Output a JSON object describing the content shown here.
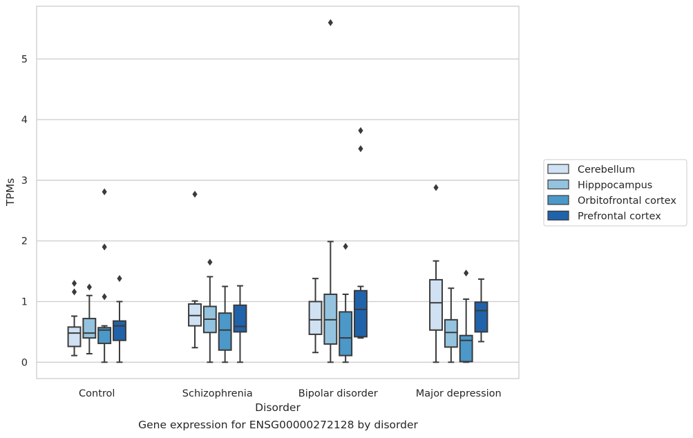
{
  "caption": "Gene expression for ENSG00000272128 by disorder",
  "chart_data": {
    "type": "box",
    "title": "",
    "xlabel": "Disorder",
    "ylabel": "TPMs",
    "ylim": [
      -0.27,
      5.87
    ],
    "yticks": [
      0,
      1,
      2,
      3,
      4,
      5
    ],
    "grid": "horizontal",
    "legend_position": "outside-right",
    "categories": [
      "Control",
      "Schizophrenia",
      "Bipolar disorder",
      "Major depression"
    ],
    "series": [
      {
        "name": "Cerebellum",
        "color": "#cfe1f2",
        "boxes": [
          {
            "whislo": 0.11,
            "q1": 0.26,
            "med": 0.48,
            "q3": 0.58,
            "whishi": 0.76,
            "fliers": [
              1.16,
              1.3
            ]
          },
          {
            "whislo": 0.24,
            "q1": 0.6,
            "med": 0.77,
            "q3": 0.96,
            "whishi": 1.01,
            "fliers": [
              2.77
            ]
          },
          {
            "whislo": 0.16,
            "q1": 0.46,
            "med": 0.7,
            "q3": 1.0,
            "whishi": 1.38,
            "fliers": []
          },
          {
            "whislo": 0.0,
            "q1": 0.53,
            "med": 0.98,
            "q3": 1.36,
            "whishi": 1.67,
            "fliers": [
              2.88
            ]
          }
        ]
      },
      {
        "name": "Hipppocampus",
        "color": "#93c3df",
        "boxes": [
          {
            "whislo": 0.14,
            "q1": 0.4,
            "med": 0.48,
            "q3": 0.72,
            "whishi": 1.1,
            "fliers": [
              1.24
            ]
          },
          {
            "whislo": 0.0,
            "q1": 0.49,
            "med": 0.71,
            "q3": 0.92,
            "whishi": 1.41,
            "fliers": [
              1.65
            ]
          },
          {
            "whislo": 0.0,
            "q1": 0.3,
            "med": 0.7,
            "q3": 1.12,
            "whishi": 1.99,
            "fliers": [
              5.6
            ]
          },
          {
            "whislo": 0.0,
            "q1": 0.25,
            "med": 0.49,
            "q3": 0.7,
            "whishi": 1.22,
            "fliers": []
          }
        ]
      },
      {
        "name": "Orbitofrontal cortex",
        "color": "#4b98c9",
        "boxes": [
          {
            "whislo": 0.0,
            "q1": 0.31,
            "med": 0.53,
            "q3": 0.57,
            "whishi": 0.6,
            "fliers": [
              1.08,
              1.9,
              2.81
            ]
          },
          {
            "whislo": 0.0,
            "q1": 0.2,
            "med": 0.53,
            "q3": 0.81,
            "whishi": 1.25,
            "fliers": []
          },
          {
            "whislo": 0.0,
            "q1": 0.11,
            "med": 0.4,
            "q3": 0.83,
            "whishi": 1.12,
            "fliers": [
              1.91
            ]
          },
          {
            "whislo": 0.0,
            "q1": 0.01,
            "med": 0.36,
            "q3": 0.44,
            "whishi": 1.04,
            "fliers": [
              1.47
            ]
          }
        ]
      },
      {
        "name": "Prefrontal cortex",
        "color": "#2163aa",
        "boxes": [
          {
            "whislo": 0.0,
            "q1": 0.36,
            "med": 0.6,
            "q3": 0.68,
            "whishi": 1.0,
            "fliers": [
              1.38
            ]
          },
          {
            "whislo": 0.0,
            "q1": 0.5,
            "med": 0.59,
            "q3": 0.94,
            "whishi": 1.26,
            "fliers": []
          },
          {
            "whislo": 0.4,
            "q1": 0.42,
            "med": 0.87,
            "q3": 1.18,
            "whishi": 1.25,
            "fliers": [
              3.52,
              3.82
            ]
          },
          {
            "whislo": 0.34,
            "q1": 0.5,
            "med": 0.85,
            "q3": 0.99,
            "whishi": 1.37,
            "fliers": []
          }
        ]
      }
    ]
  }
}
